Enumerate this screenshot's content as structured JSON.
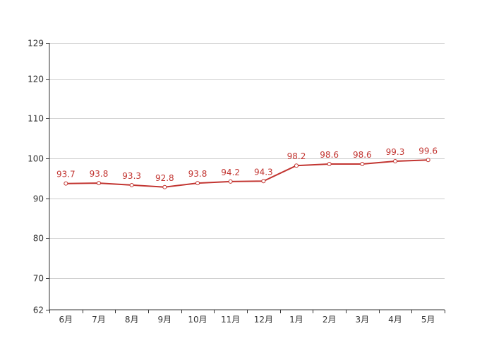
{
  "chart_data": {
    "type": "line",
    "categories": [
      "6月",
      "7月",
      "8月",
      "9月",
      "10月",
      "11月",
      "12月",
      "1月",
      "2月",
      "3月",
      "4月",
      "5月"
    ],
    "series": [
      {
        "values": [
          93.7,
          93.8,
          93.3,
          92.8,
          93.8,
          94.2,
          94.3,
          98.2,
          98.6,
          98.6,
          99.3,
          99.6
        ],
        "labels": [
          "93.7",
          "93.8",
          "93.3",
          "92.8",
          "93.8",
          "94.2",
          "94.3",
          "98.2",
          "98.6",
          "98.6",
          "99.3",
          "99.6"
        ]
      }
    ],
    "title": "",
    "xlabel": "",
    "ylabel": "",
    "ylim": [
      62,
      129
    ],
    "yticks": [
      62,
      70,
      80,
      90,
      100,
      110,
      120,
      129
    ],
    "ytick_labels": [
      "62",
      "70",
      "80",
      "90",
      "100",
      "110",
      "120",
      "129"
    ],
    "grid": true,
    "colors": {
      "series": "#c23531",
      "grid": "#cccccc",
      "axis": "#333333",
      "point_fill": "#ffffff"
    }
  }
}
